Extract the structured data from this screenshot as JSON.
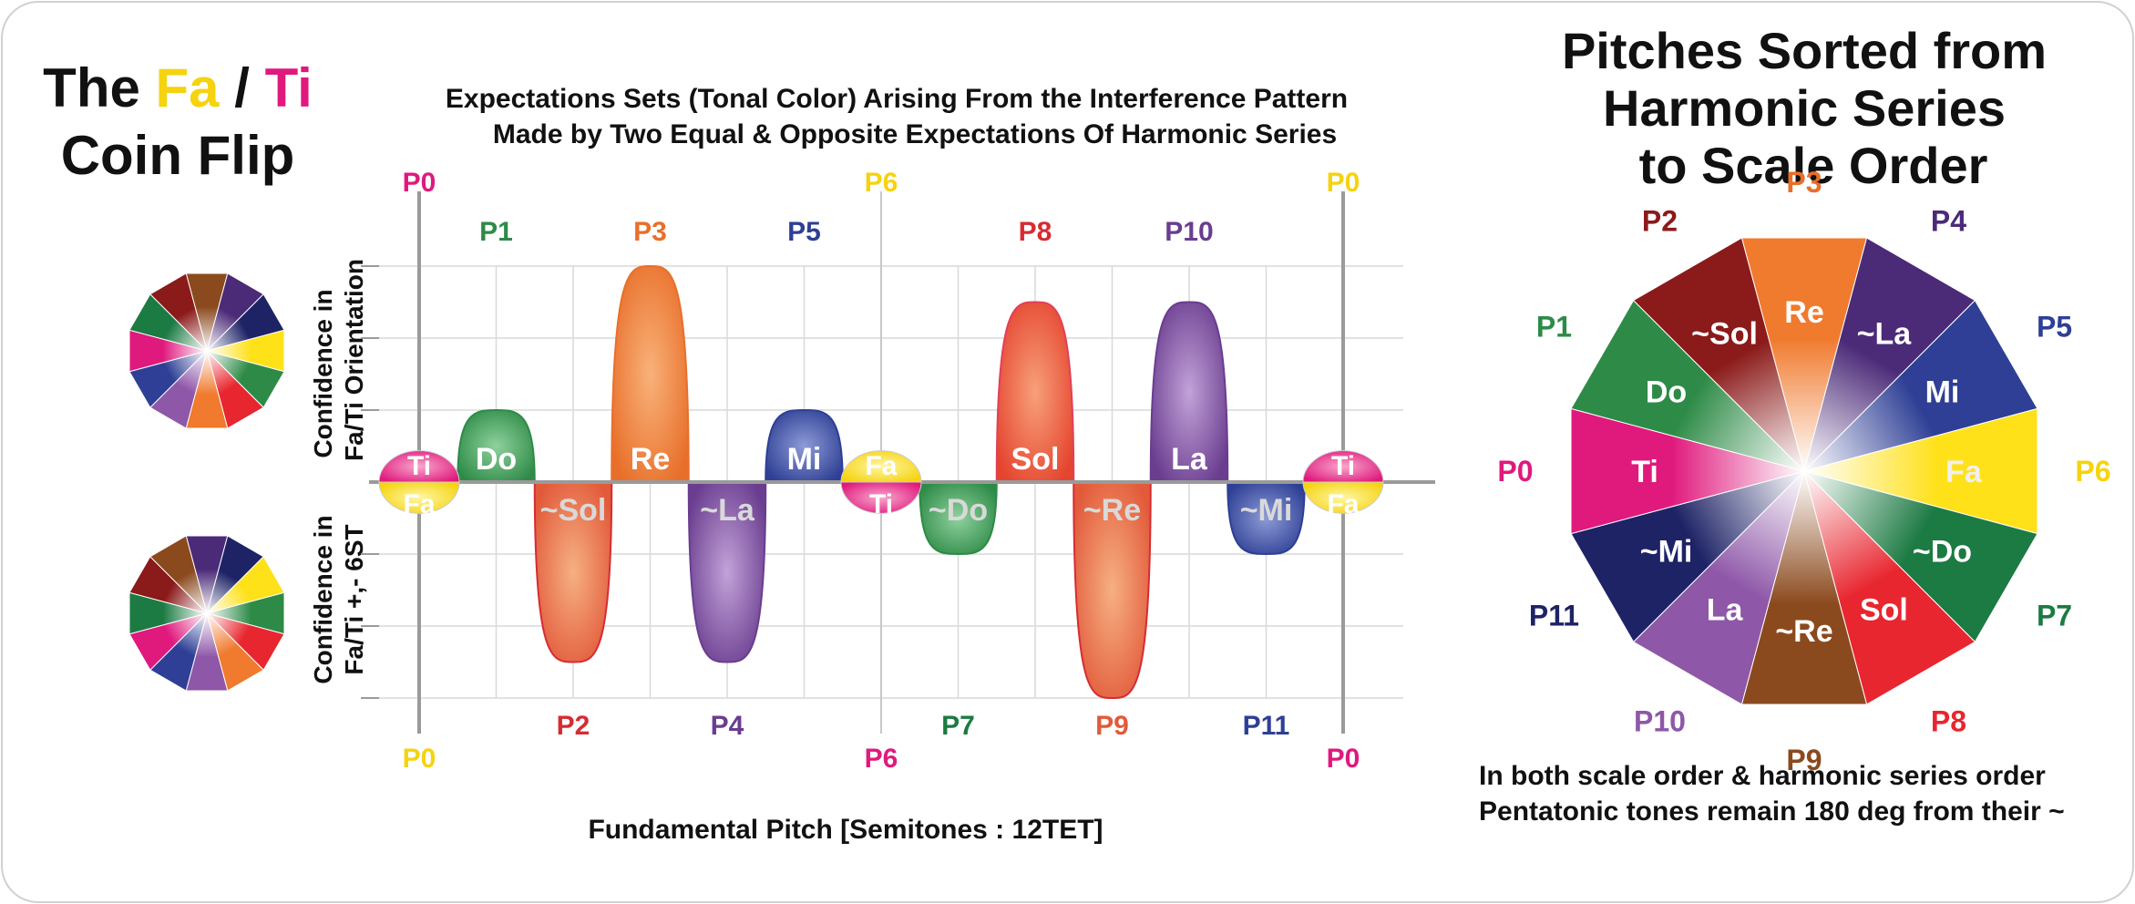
{
  "colors": {
    "pink": "#E0197D",
    "yellow": "#FFE11A",
    "green": "#2E8B47",
    "red": "#D62C33",
    "orange": "#F07A2E",
    "purple": "#6A3D8F",
    "blue": "#2E3F95",
    "dark_red": "#8B1A1A",
    "teal_green": "#1C7A43",
    "navy": "#1E2366",
    "brown": "#8B4A1E",
    "lilac": "#8E57A8",
    "axis": "#9A9A9A",
    "grid": "#D9D9D9",
    "text": "#111111"
  },
  "title": {
    "the": "The",
    "fa": "Fa",
    "slash": "/",
    "ti": "Ti",
    "line2": "Coin Flip"
  },
  "chart_title": {
    "line1": "Expectations Sets (Tonal Color) Arising From the Interference Pattern",
    "line2": "Made by Two Equal & Opposite Expectations Of Harmonic Series"
  },
  "ylabel_top": {
    "line1": "Confidence in",
    "line2": "Fa/Ti Orientation"
  },
  "ylabel_bottom": {
    "line1": "Confidence in",
    "line2": "Fa/Ti  +,- 6ST"
  },
  "xlabel": "Fundamental Pitch [Semitones : 12TET]",
  "top_labels": [
    "P0",
    "P1",
    "P3",
    "P5",
    "P6",
    "P8",
    "P10",
    "P0"
  ],
  "bottom_labels": [
    "P0",
    "P2",
    "P4",
    "P6",
    "P7",
    "P9",
    "P11",
    "P0"
  ],
  "chart_data": {
    "type": "area",
    "description_units": "x in semitones, y in relative confidence",
    "xlim": [
      -0.5,
      12.5
    ],
    "ylim": [
      -3,
      3
    ],
    "lobes": [
      {
        "pitch": "P1",
        "x": 1,
        "value": 1,
        "label": "Do"
      },
      {
        "pitch": "P2",
        "x": 2,
        "value": -2.5,
        "label": "~Sol"
      },
      {
        "pitch": "P3",
        "x": 3,
        "value": 3,
        "label": "Re"
      },
      {
        "pitch": "P4",
        "x": 4,
        "value": -2.5,
        "label": "~La"
      },
      {
        "pitch": "P5",
        "x": 5,
        "value": 1,
        "label": "Mi"
      },
      {
        "pitch": "P7",
        "x": 7,
        "value": -1,
        "label": "~Do"
      },
      {
        "pitch": "P8",
        "x": 8,
        "value": 2.5,
        "label": "Sol"
      },
      {
        "pitch": "P9",
        "x": 9,
        "value": -3,
        "label": "~Re"
      },
      {
        "pitch": "P10",
        "x": 10,
        "value": 2.5,
        "label": "La"
      },
      {
        "pitch": "P11",
        "x": 11,
        "value": -1,
        "label": "~Mi"
      }
    ],
    "coins": [
      {
        "x": 0,
        "top": "Ti",
        "bottom": "Fa"
      },
      {
        "x": 6,
        "top": "Fa",
        "bottom": "Ti"
      },
      {
        "x": 12,
        "top": "Ti",
        "bottom": "Fa"
      }
    ]
  },
  "right_title": {
    "line1": "Pitches Sorted from",
    "line2": "Harmonic Series",
    "line3": "to Scale Order"
  },
  "wheel": {
    "segments": [
      {
        "pitch": "P3",
        "syllable": "Re"
      },
      {
        "pitch": "P4",
        "syllable": "~La"
      },
      {
        "pitch": "P5",
        "syllable": "Mi"
      },
      {
        "pitch": "P6",
        "syllable": "Fa"
      },
      {
        "pitch": "P7",
        "syllable": "~Do"
      },
      {
        "pitch": "P8",
        "syllable": "Sol"
      },
      {
        "pitch": "P9",
        "syllable": "~Re"
      },
      {
        "pitch": "P10",
        "syllable": "La"
      },
      {
        "pitch": "P11",
        "syllable": "~Mi"
      },
      {
        "pitch": "P0",
        "syllable": "Ti"
      },
      {
        "pitch": "P1",
        "syllable": "Do"
      },
      {
        "pitch": "P2",
        "syllable": "~Sol"
      }
    ]
  },
  "footer": {
    "line1": "In both scale order & harmonic series order",
    "line2": "Pentatonic tones remain 180 deg from their ~"
  }
}
